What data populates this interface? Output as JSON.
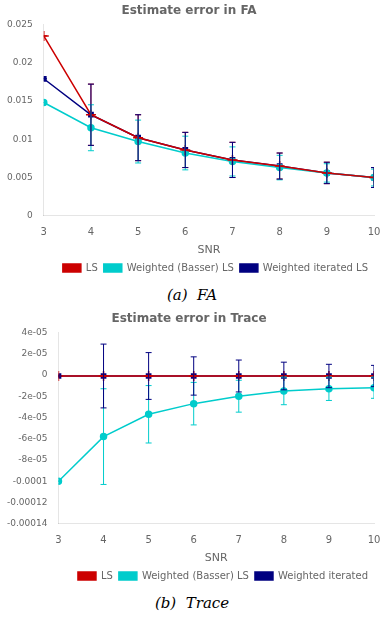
{
  "chart_data": [
    {
      "type": "line",
      "title": "Estimate error in FA",
      "x_label": "SNR",
      "annotations": [
        "(a)  FA"
      ],
      "x": [
        3,
        4,
        5,
        6,
        7,
        8,
        9,
        10
      ],
      "xlim": [
        3,
        10
      ],
      "xticks": [
        3,
        4,
        5,
        6,
        7,
        8,
        9,
        10
      ],
      "ylim": [
        0,
        0.025
      ],
      "yticks": [
        0,
        0.005,
        0.01,
        0.015,
        0.02,
        0.025
      ],
      "grid": false,
      "legend": "lower right",
      "series": [
        {
          "name": "LS",
          "color": "#cc0000",
          "marker": "plus",
          "values": [
            0.0235,
            0.0132,
            0.0102,
            0.0086,
            0.0073,
            0.0065,
            0.0056,
            0.005
          ],
          "errors": [
            0.0,
            0.004,
            0.003,
            0.0023,
            0.0023,
            0.0017,
            0.0014,
            0.0013
          ]
        },
        {
          "name": "Weighted (Basser) LS",
          "color": "#00cccc",
          "marker": "circle",
          "values": [
            0.0148,
            0.0115,
            0.0097,
            0.0082,
            0.0071,
            0.0063,
            0.0056,
            0.005
          ],
          "errors": [
            0.0,
            0.003,
            0.0028,
            0.0022,
            0.0019,
            0.0016,
            0.0012,
            0.0011
          ]
        },
        {
          "name": "Weighted iterated LS",
          "color": "#000080",
          "marker": "square",
          "values": [
            0.0179,
            0.0132,
            0.0102,
            0.0086,
            0.0073,
            0.0065,
            0.0056,
            0.005
          ],
          "errors": [
            0.0,
            0.004,
            0.003,
            0.0023,
            0.0023,
            0.0017,
            0.0014,
            0.0013
          ]
        }
      ]
    },
    {
      "type": "line",
      "title": "Estimate error in Trace",
      "x_label": "SNR",
      "annotations": [
        "(b)  Trace"
      ],
      "x": [
        3,
        4,
        5,
        6,
        7,
        8,
        9,
        10
      ],
      "xlim": [
        3,
        10
      ],
      "xticks": [
        3,
        4,
        5,
        6,
        7,
        8,
        9,
        10
      ],
      "ylim": [
        -0.00014,
        4e-05
      ],
      "yticks": [
        -0.00014,
        -0.00012,
        -0.0001,
        {
          "value": -8e-05,
          "label": "-8e-05"
        },
        {
          "value": -6e-05,
          "label": "-6e-05"
        },
        {
          "value": -4e-05,
          "label": "-4e-05"
        },
        {
          "value": -2e-05,
          "label": "-2e-05"
        },
        0,
        {
          "value": 2e-05,
          "label": "2e-05"
        },
        {
          "value": 4e-05,
          "label": "4e-05"
        }
      ],
      "grid": false,
      "legend": "lower right",
      "series": [
        {
          "name": "LS",
          "color": "#cc0000",
          "marker": "plus",
          "values": [
            -1e-06,
            -1e-06,
            -1e-06,
            -1e-06,
            -1e-06,
            -1e-06,
            -1e-06,
            -1e-06
          ],
          "errors": [
            0.0,
            0.0,
            0.0,
            0.0,
            0.0,
            0.0,
            0.0,
            0.0
          ]
        },
        {
          "name": "Weighted (Basser) LS",
          "color": "#00cccc",
          "marker": "circle",
          "values": [
            -0.0001,
            -5.8e-05,
            -3.7e-05,
            -2.7e-05,
            -2e-05,
            -1.5e-05,
            -1.3e-05,
            -1.2e-05
          ],
          "errors": [
            0.0,
            4.5e-05,
            2.7e-05,
            2e-05,
            1.5e-05,
            1.3e-05,
            1.1e-05,
            1e-05
          ]
        },
        {
          "name": "Weighted iterated",
          "color": "#000080",
          "marker": "square",
          "values": [
            -1e-06,
            -1e-06,
            -1e-06,
            -1e-06,
            -1e-06,
            -1e-06,
            -1e-06,
            -1e-06
          ],
          "errors": [
            0.0,
            3e-05,
            2.2e-05,
            1.8e-05,
            1.5e-05,
            1.3e-05,
            1.1e-05,
            1e-05
          ]
        }
      ]
    }
  ]
}
